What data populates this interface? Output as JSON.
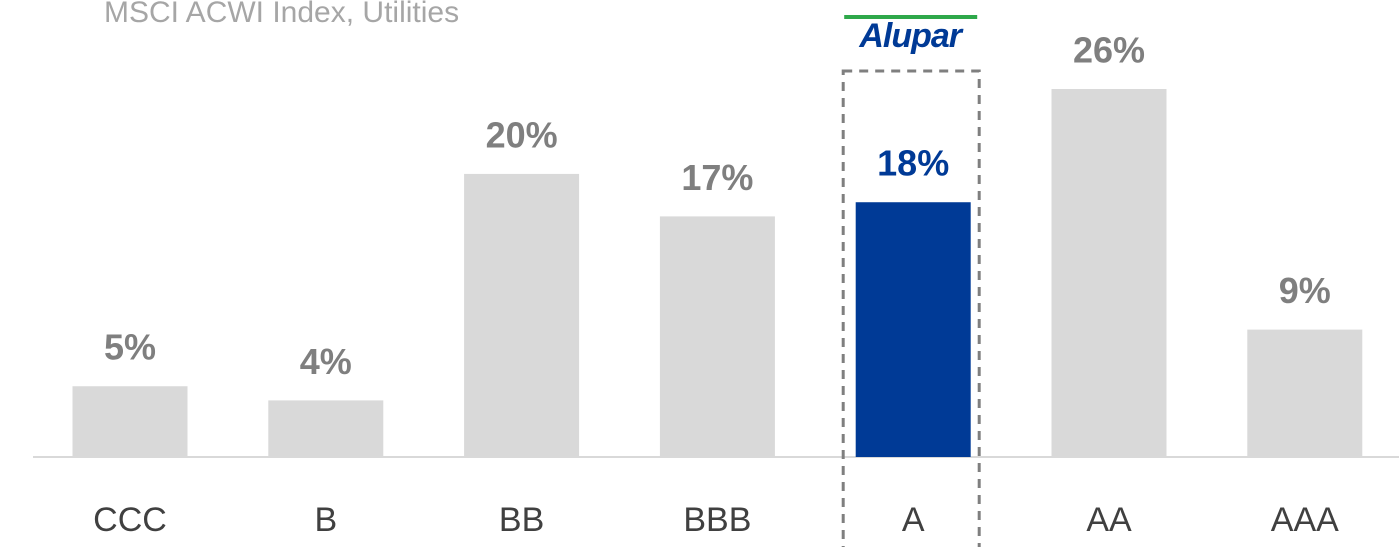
{
  "chart_data": {
    "type": "bar",
    "title": "MSCI ACWI Index, Utilities",
    "categories": [
      "CCC",
      "B",
      "BB",
      "BBB",
      "A",
      "AA",
      "AAA"
    ],
    "values": [
      5,
      4,
      20,
      17,
      18,
      26,
      9
    ],
    "value_labels": [
      "5%",
      "4%",
      "20%",
      "17%",
      "18%",
      "26%",
      "9%"
    ],
    "colors": [
      "#d9d9d9",
      "#d9d9d9",
      "#d9d9d9",
      "#d9d9d9",
      "#003a96",
      "#d9d9d9",
      "#d9d9d9"
    ],
    "label_colors": [
      "#7f7f7f",
      "#7f7f7f",
      "#7f7f7f",
      "#7f7f7f",
      "#003a96",
      "#7f7f7f",
      "#7f7f7f"
    ],
    "annotation": {
      "text": "Alupar",
      "category": "A"
    }
  }
}
